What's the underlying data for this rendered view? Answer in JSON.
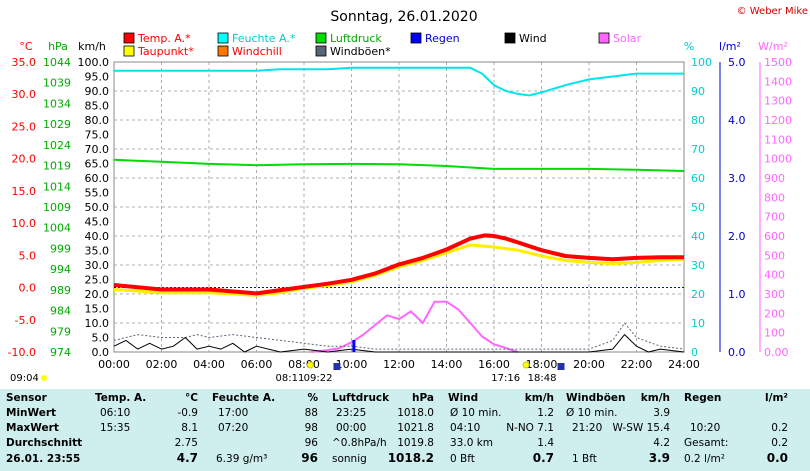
{
  "header": {
    "title": "Sonntag, 26.01.2020",
    "copyright": "© Weber Mike"
  },
  "colors": {
    "temp": "#ff0000",
    "dew": "#ffff00",
    "humidity": "#00ffff",
    "pressure": "#00dd00",
    "rain": "#0000ff",
    "wind": "#000000",
    "gust": "#445566",
    "solar": "#ff66ff",
    "windchill": "#ff7700"
  },
  "legend": [
    {
      "label": "Temp. A.*",
      "color": "#ff0000",
      "text_color": "#ff0000"
    },
    {
      "label": "Feuchte A.*",
      "color": "#00ffff",
      "text_color": "#00cccc"
    },
    {
      "label": "Luftdruck",
      "color": "#00dd00",
      "text_color": "#00aa00"
    },
    {
      "label": "Regen",
      "color": "#0000ff",
      "text_color": "#0000cc"
    },
    {
      "label": "Wind",
      "color": "#000000",
      "text_color": "#000000"
    },
    {
      "label": "Solar",
      "color": "#ff66ff",
      "text_color": "#ff66ff"
    },
    {
      "label": "Taupunkt*",
      "color": "#ffff00",
      "text_color": "#ff0000"
    },
    {
      "label": "Windchill",
      "color": "#ff7700",
      "text_color": "#ff0000"
    },
    {
      "label": "Windböen*",
      "color": "#556677",
      "text_color": "#000000"
    }
  ],
  "axis_units": {
    "temp": "°C",
    "pressure": "hPa",
    "speed": "km/h",
    "humidity": "%",
    "rain": "l/m²",
    "solar": "W/m²"
  },
  "chart_data": {
    "type": "line",
    "x_ticks": [
      "00:00",
      "02:00",
      "04:00",
      "06:00",
      "08:00",
      "10:00",
      "12:00",
      "14:00",
      "16:00",
      "18:00",
      "20:00",
      "22:00",
      "24:00"
    ],
    "axes": {
      "temp": {
        "unit": "°C",
        "ylim": [
          -10,
          35
        ],
        "ticks": [
          "35.0",
          "30.0",
          "25.0",
          "20.0",
          "15.0",
          "10.0",
          "5.0",
          "0.0",
          "-5.0",
          "-10.0"
        ]
      },
      "pressure": {
        "unit": "hPa",
        "ticks": [
          "1044",
          "1039",
          "1034",
          "1029",
          "1024",
          "1019",
          "1014",
          "1009",
          "1004",
          "999",
          "994",
          "989",
          "984",
          "979",
          "974"
        ]
      },
      "speed": {
        "unit": "km/h",
        "ylim": [
          0,
          100
        ],
        "ticks": [
          "100.0",
          "95.0",
          "90.0",
          "85.0",
          "80.0",
          "75.0",
          "70.0",
          "65.0",
          "60.0",
          "55.0",
          "50.0",
          "45.0",
          "40.0",
          "35.0",
          "30.0",
          "25.0",
          "20.0",
          "15.0",
          "10.0",
          "5.0",
          "0.0"
        ]
      },
      "humidity": {
        "unit": "%",
        "ylim": [
          0,
          100
        ],
        "ticks": [
          "100",
          "90",
          "80",
          "70",
          "60",
          "50",
          "40",
          "30",
          "20",
          "10",
          "0"
        ]
      },
      "rain": {
        "unit": "l/m²",
        "ylim": [
          0,
          5
        ],
        "ticks": [
          "5.0",
          "4.0",
          "3.0",
          "2.0",
          "1.0",
          "0.0"
        ]
      },
      "solar": {
        "unit": "W/m²",
        "ylim": [
          0,
          1500
        ],
        "ticks": [
          "1500",
          "1400",
          "1300",
          "1200",
          "1100",
          "1000",
          "900",
          "800",
          "700",
          "600",
          "500",
          "400",
          "300",
          "200",
          "100",
          "0.00"
        ]
      }
    },
    "series": [
      {
        "name": "Temp. A.*",
        "axis": "temp",
        "points": [
          [
            0,
            0.4
          ],
          [
            2,
            -0.3
          ],
          [
            4,
            -0.3
          ],
          [
            6,
            -0.9
          ],
          [
            7,
            -0.4
          ],
          [
            8,
            0.1
          ],
          [
            9,
            0.6
          ],
          [
            10,
            1.2
          ],
          [
            11,
            2.2
          ],
          [
            12,
            3.6
          ],
          [
            13,
            4.6
          ],
          [
            14,
            5.9
          ],
          [
            15,
            7.6
          ],
          [
            15.6,
            8.1
          ],
          [
            16,
            8.0
          ],
          [
            16.5,
            7.6
          ],
          [
            17,
            7.0
          ],
          [
            18,
            5.8
          ],
          [
            19,
            4.9
          ],
          [
            20,
            4.6
          ],
          [
            21,
            4.4
          ],
          [
            22,
            4.6
          ],
          [
            23,
            4.7
          ],
          [
            24,
            4.7
          ]
        ]
      },
      {
        "name": "Taupunkt*",
        "axis": "temp",
        "points": [
          [
            0,
            -0.3
          ],
          [
            2,
            -0.8
          ],
          [
            4,
            -0.8
          ],
          [
            6,
            -1.2
          ],
          [
            7,
            -0.8
          ],
          [
            8,
            -0.1
          ],
          [
            9,
            0.3
          ],
          [
            10,
            0.9
          ],
          [
            11,
            1.9
          ],
          [
            12,
            3.2
          ],
          [
            13,
            4.2
          ],
          [
            14,
            5.4
          ],
          [
            15,
            6.6
          ],
          [
            16,
            6.3
          ],
          [
            17,
            5.8
          ],
          [
            18,
            4.9
          ],
          [
            19,
            4.2
          ],
          [
            20,
            3.9
          ],
          [
            21,
            3.7
          ],
          [
            22,
            3.9
          ],
          [
            23,
            4.2
          ],
          [
            24,
            4.4
          ]
        ]
      },
      {
        "name": "Feuchte A.*",
        "axis": "humidity",
        "points": [
          [
            0,
            97
          ],
          [
            2,
            97
          ],
          [
            4,
            97
          ],
          [
            6,
            97
          ],
          [
            7,
            97.5
          ],
          [
            8,
            97.5
          ],
          [
            9,
            97.5
          ],
          [
            10,
            98
          ],
          [
            12,
            98
          ],
          [
            13,
            98
          ],
          [
            14,
            98
          ],
          [
            15,
            98
          ],
          [
            15.5,
            96
          ],
          [
            16,
            92
          ],
          [
            16.5,
            90
          ],
          [
            17,
            89
          ],
          [
            17.5,
            88.5
          ],
          [
            18,
            89.5
          ],
          [
            19,
            92
          ],
          [
            20,
            94
          ],
          [
            21,
            95
          ],
          [
            22,
            96
          ],
          [
            23,
            96
          ],
          [
            24,
            96
          ]
        ]
      },
      {
        "name": "Luftdruck",
        "axis": "pressure",
        "points": [
          [
            0,
            1020.4
          ],
          [
            2,
            1019.9
          ],
          [
            4,
            1019.4
          ],
          [
            6,
            1019.1
          ],
          [
            8,
            1019.3
          ],
          [
            10,
            1019.4
          ],
          [
            12,
            1019.3
          ],
          [
            14,
            1018.9
          ],
          [
            16,
            1018.2
          ],
          [
            18,
            1018.2
          ],
          [
            20,
            1018.2
          ],
          [
            22,
            1018.0
          ],
          [
            24,
            1017.7
          ]
        ]
      },
      {
        "name": "Solar",
        "axis": "solar",
        "points": [
          [
            8.3,
            0
          ],
          [
            9,
            10
          ],
          [
            9.5,
            20
          ],
          [
            10,
            50
          ],
          [
            10.5,
            90
          ],
          [
            11,
            140
          ],
          [
            11.5,
            190
          ],
          [
            12,
            170
          ],
          [
            12.5,
            210
          ],
          [
            13,
            150
          ],
          [
            13.5,
            260
          ],
          [
            14,
            260
          ],
          [
            14.5,
            220
          ],
          [
            15,
            150
          ],
          [
            15.5,
            80
          ],
          [
            16,
            40
          ],
          [
            16.5,
            20
          ],
          [
            17,
            0
          ]
        ]
      },
      {
        "name": "Wind",
        "axis": "speed",
        "points": [
          [
            0,
            2
          ],
          [
            0.5,
            4
          ],
          [
            1,
            1
          ],
          [
            1.5,
            3
          ],
          [
            2,
            1
          ],
          [
            2.5,
            2
          ],
          [
            3,
            5
          ],
          [
            3.5,
            1
          ],
          [
            4,
            2
          ],
          [
            4.5,
            1
          ],
          [
            5,
            3
          ],
          [
            5.5,
            0
          ],
          [
            6,
            2
          ],
          [
            7,
            0
          ],
          [
            8,
            1
          ],
          [
            9,
            0
          ],
          [
            10,
            1
          ],
          [
            11,
            0
          ],
          [
            12,
            0
          ],
          [
            13,
            0
          ],
          [
            14,
            0
          ],
          [
            15,
            0
          ],
          [
            16,
            0
          ],
          [
            17,
            0
          ],
          [
            18,
            0
          ],
          [
            19,
            0
          ],
          [
            20,
            0
          ],
          [
            21,
            1
          ],
          [
            21.5,
            6
          ],
          [
            22,
            2
          ],
          [
            22.5,
            0
          ],
          [
            23,
            1
          ],
          [
            24,
            0
          ]
        ]
      },
      {
        "name": "Windböen*",
        "axis": "speed",
        "points": [
          [
            0,
            4
          ],
          [
            1,
            6
          ],
          [
            2,
            5
          ],
          [
            3,
            5
          ],
          [
            3.5,
            6
          ],
          [
            4,
            5
          ],
          [
            5,
            6
          ],
          [
            6,
            5
          ],
          [
            7,
            4
          ],
          [
            8,
            3
          ],
          [
            9,
            2
          ],
          [
            10,
            2
          ],
          [
            11,
            1
          ],
          [
            12,
            1
          ],
          [
            13,
            1
          ],
          [
            14,
            1
          ],
          [
            15,
            1
          ],
          [
            16,
            1
          ],
          [
            17,
            1
          ],
          [
            18,
            1
          ],
          [
            19,
            1
          ],
          [
            20,
            1
          ],
          [
            21,
            4
          ],
          [
            21.5,
            10
          ],
          [
            22,
            5
          ],
          [
            23,
            2
          ],
          [
            24,
            1
          ]
        ]
      }
    ],
    "rain_markers": [
      10.1
    ],
    "day_events": {
      "sunrise": "08:11",
      "sunset": "17:16",
      "moonrise": "09:22",
      "moonset": "18:48",
      "tmin_marker": "09:04"
    }
  },
  "table": {
    "row_labels": [
      "Sensor",
      "MinWert",
      "MaxWert",
      "Durchschnitt",
      "26.01. 23:55"
    ],
    "temp": {
      "header": "Temp. A.",
      "unit": "°C",
      "min_time": "06:10",
      "min": "-0.9",
      "max_time": "15:35",
      "max": "8.1",
      "avg": "2.75",
      "current": "4.7"
    },
    "humidity": {
      "header": "Feuchte A.",
      "unit": "%",
      "min_time": "17:00",
      "min": "88",
      "max_time": "07:20",
      "max": "98",
      "avg": "96",
      "extra": "6.39 g/m³",
      "current": "96"
    },
    "pressure": {
      "header": "Luftdruck",
      "unit": "hPa",
      "min_time": "23:25",
      "min": "1018.0",
      "max_time": "00:00",
      "max": "1021.8",
      "trend": "^0.8hPa/h",
      "avg": "1019.8",
      "state": "sonnig",
      "current": "1018.2"
    },
    "wind": {
      "header": "Wind",
      "unit": "km/h",
      "l1": "Ø 10 min.",
      "v1": "1.2",
      "l2": "04:10",
      "l2b": "N-NO 7.1",
      "l3": "33.0 km",
      "v3": "1.4",
      "l4": "0 Bft",
      "current": "0.7"
    },
    "gust": {
      "header": "Windböen",
      "unit": "km/h",
      "l1": "Ø 10 min.",
      "v1": "3.9",
      "l2": "21:20",
      "l2b": "W-SW 15.4",
      "v3": "4.2",
      "l4": "1 Bft",
      "current": "3.9"
    },
    "rain": {
      "header": "Regen",
      "unit": "l/m²",
      "max_time": "10:20",
      "max": "0.2",
      "total_label": "Gesamt:",
      "total": "0.2",
      "current_text": "0.2 l/m²",
      "current": "0.0"
    }
  }
}
